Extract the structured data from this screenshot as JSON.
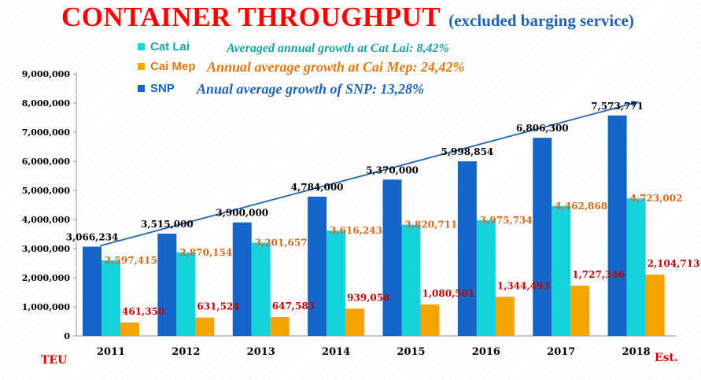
{
  "header": {
    "title": "CONTAINER THROUGHPUT",
    "subtitle": "(excluded barging service)"
  },
  "axis": {
    "unit_label": "TEU",
    "est_label": "Est."
  },
  "growth_notes": [
    {
      "text": "Averaged annual growth at Cat Lai: 8,42%",
      "color": "#17a2a6"
    },
    {
      "text": "Annual average growth at Cai Mep: 24,42%",
      "color": "#e07a10"
    },
    {
      "text": "Anual average growth of SNP: 13,28%",
      "color": "#1f64b4"
    }
  ],
  "colors": {
    "snp": "#1565c8",
    "cat_lai": "#15d2dc",
    "cai_mep": "#f5a300",
    "snp_label": "#000000",
    "cat_lai_label": "#d2691e",
    "cai_mep_label": "#c00000",
    "trend": "#1f64b4"
  },
  "chart_data": {
    "type": "bar",
    "title": "CONTAINER THROUGHPUT",
    "subtitle": "(excluded barging service)",
    "categories": [
      "2011",
      "2012",
      "2013",
      "2014",
      "2015",
      "2016",
      "2017",
      "2018"
    ],
    "series": [
      {
        "name": "SNP",
        "values": [
          3066234,
          3515000,
          3900000,
          4784000,
          5370000,
          5998854,
          6806300,
          7573771
        ],
        "labels": [
          "3,066,234",
          "3,515,000",
          "3,900,000",
          "4,784,000",
          "5,370,000",
          "5,998,854",
          "6,806,300",
          "7,573,771"
        ]
      },
      {
        "name": "Cat Lai",
        "values": [
          2597415,
          2870154,
          3201657,
          3616243,
          3820711,
          3975734,
          4462868,
          4723002
        ],
        "labels": [
          "2,597,415",
          "2,870,154",
          "3,201,657",
          "3,616,243",
          "3,820,711",
          "3,975,734",
          "4,462,868",
          "4,723,002"
        ]
      },
      {
        "name": "Cai Mep",
        "values": [
          461350,
          631524,
          647583,
          939058,
          1080501,
          1344493,
          1727346,
          2104713
        ],
        "labels": [
          "461,350",
          "631,524",
          "647,583",
          "939,058",
          "1,080,501",
          "1,344,493",
          "1,727,346",
          "2,104,713"
        ]
      }
    ],
    "legend_order": [
      "Cat Lai",
      "Cai Mep",
      "SNP"
    ],
    "legend_position": "top-left",
    "ylabel": "TEU",
    "ylim": [
      0,
      9000000
    ],
    "yticks": [
      0,
      1000000,
      2000000,
      3000000,
      4000000,
      5000000,
      6000000,
      7000000,
      8000000,
      9000000
    ],
    "ytick_labels": [
      "0",
      "1,000,000",
      "2,000,000",
      "3,000,000",
      "4,000,000",
      "5,000,000",
      "6,000,000",
      "7,000,000",
      "8,000,000",
      "9,000,000"
    ],
    "grid": false,
    "trend_line": {
      "series": "SNP",
      "arrow": true
    }
  }
}
